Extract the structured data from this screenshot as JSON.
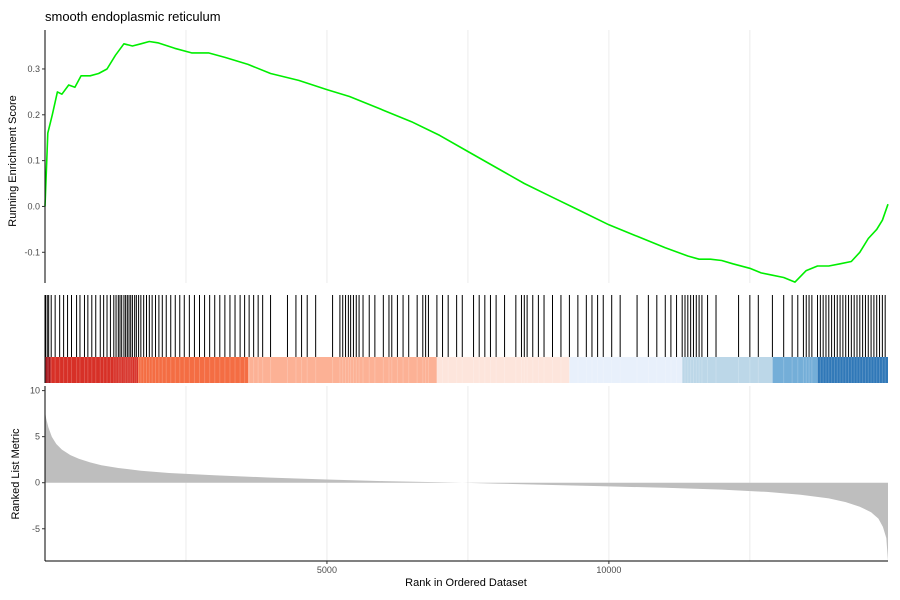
{
  "chart_data": [
    {
      "panel": "running-enrichment",
      "type": "line",
      "title": "smooth endoplasmic reticulum",
      "ylabel": "Running Enrichment Score",
      "xlim": [
        0,
        14950
      ],
      "ylim": [
        -0.167,
        0.385
      ],
      "yticks": [
        -0.1,
        0.0,
        0.1,
        0.2,
        0.3
      ],
      "ytick_labels": [
        "-0.1",
        "0.0",
        "0.1",
        "0.2",
        "0.3"
      ],
      "grid": true,
      "color": "#00ee00",
      "x": [
        0,
        50,
        130,
        220,
        300,
        420,
        530,
        640,
        800,
        950,
        1100,
        1250,
        1400,
        1550,
        1700,
        1850,
        2000,
        2300,
        2600,
        2900,
        3200,
        3600,
        4000,
        4500,
        5000,
        5400,
        6000,
        6500,
        7000,
        7500,
        8000,
        8500,
        9000,
        9500,
        10000,
        10500,
        11000,
        11400,
        11600,
        11800,
        12000,
        12200,
        12500,
        12700,
        12900,
        13100,
        13300,
        13500,
        13700,
        13900,
        14100,
        14300,
        14450,
        14600,
        14750,
        14850,
        14950
      ],
      "y": [
        0.0,
        0.16,
        0.2,
        0.25,
        0.245,
        0.265,
        0.26,
        0.285,
        0.285,
        0.29,
        0.3,
        0.33,
        0.355,
        0.35,
        0.355,
        0.36,
        0.357,
        0.345,
        0.335,
        0.335,
        0.325,
        0.31,
        0.29,
        0.275,
        0.255,
        0.24,
        0.21,
        0.185,
        0.155,
        0.12,
        0.085,
        0.05,
        0.02,
        -0.01,
        -0.04,
        -0.065,
        -0.09,
        -0.108,
        -0.115,
        -0.115,
        -0.118,
        -0.125,
        -0.135,
        -0.145,
        -0.15,
        -0.155,
        -0.165,
        -0.14,
        -0.13,
        -0.13,
        -0.125,
        -0.12,
        -0.1,
        -0.07,
        -0.05,
        -0.03,
        0.005
      ]
    },
    {
      "panel": "gene-hits",
      "type": "rug",
      "xlim": [
        0,
        14950
      ],
      "hits": [
        10,
        40,
        65,
        110,
        180,
        260,
        330,
        400,
        470,
        560,
        620,
        700,
        760,
        830,
        900,
        980,
        1040,
        1100,
        1160,
        1220,
        1260,
        1300,
        1330,
        1360,
        1400,
        1430,
        1460,
        1490,
        1520,
        1550,
        1590,
        1620,
        1660,
        1700,
        1750,
        1800,
        1850,
        1900,
        1960,
        2020,
        2080,
        2150,
        2230,
        2310,
        2390,
        2470,
        2560,
        2650,
        2740,
        2830,
        2920,
        3010,
        3100,
        3190,
        3280,
        3370,
        3460,
        3540,
        3620,
        3700,
        3780,
        3860,
        4000,
        4300,
        4450,
        4550,
        4650,
        4800,
        5100,
        5230,
        5280,
        5330,
        5380,
        5420,
        5470,
        5520,
        5570,
        5640,
        5750,
        5850,
        6000,
        6100,
        6150,
        6250,
        6350,
        6450,
        6600,
        6700,
        6750,
        6800,
        6950,
        7050,
        7150,
        7300,
        7400,
        7600,
        7700,
        7800,
        7900,
        8000,
        8150,
        8350,
        8450,
        8500,
        8550,
        8650,
        8750,
        8850,
        9000,
        9150,
        9300,
        9450,
        9600,
        9700,
        9800,
        9900,
        10050,
        10200,
        10500,
        10700,
        10850,
        11000,
        11100,
        11200,
        11300,
        11350,
        11400,
        11450,
        11500,
        11550,
        11600,
        11650,
        11750,
        11900,
        12300,
        12500,
        12650,
        12900,
        13100,
        13250,
        13350,
        13450,
        13500,
        13550,
        13600,
        13700,
        13750,
        13800,
        13850,
        13900,
        13950,
        14000,
        14050,
        14100,
        14150,
        14200,
        14250,
        14300,
        14350,
        14400,
        14450,
        14500,
        14550,
        14600,
        14650,
        14700,
        14750,
        14800,
        14850,
        14900
      ]
    },
    {
      "panel": "rank-color-bar",
      "type": "heatmap",
      "xlim": [
        0,
        14950
      ],
      "segments": [
        {
          "start": 0,
          "end": 100,
          "color": "#a50f15"
        },
        {
          "start": 100,
          "end": 1650,
          "color": "#d73027"
        },
        {
          "start": 1650,
          "end": 3600,
          "color": "#f46d43"
        },
        {
          "start": 3600,
          "end": 6950,
          "color": "#fcb195"
        },
        {
          "start": 6950,
          "end": 9300,
          "color": "#fde5dc"
        },
        {
          "start": 9300,
          "end": 11300,
          "color": "#e8f0fb"
        },
        {
          "start": 11300,
          "end": 12900,
          "color": "#bcd7e8"
        },
        {
          "start": 12900,
          "end": 13700,
          "color": "#74aed8"
        },
        {
          "start": 13700,
          "end": 14950,
          "color": "#3078b8"
        }
      ]
    },
    {
      "panel": "ranked-list-metric",
      "type": "area",
      "xlabel": "Rank in Ordered Dataset",
      "ylabel": "Ranked List Metric",
      "xlim": [
        0,
        14950
      ],
      "ylim": [
        -8.5,
        10.5
      ],
      "xticks": [
        5000,
        10000
      ],
      "xtick_labels": [
        "5000",
        "10000"
      ],
      "yticks": [
        -5,
        0,
        5,
        10
      ],
      "ytick_labels": [
        "-5",
        "0",
        "5",
        "10"
      ],
      "grid": true,
      "color": "#bebebe",
      "x": [
        0,
        20,
        60,
        120,
        200,
        300,
        450,
        600,
        800,
        1000,
        1300,
        1700,
        2200,
        3000,
        4000,
        5000,
        6000,
        7000,
        7400,
        8000,
        9000,
        10000,
        11000,
        12000,
        12800,
        13400,
        13900,
        14200,
        14450,
        14650,
        14780,
        14860,
        14920,
        14950
      ],
      "y": [
        7.8,
        7.0,
        6.0,
        5.0,
        4.2,
        3.6,
        3.0,
        2.6,
        2.2,
        1.9,
        1.6,
        1.3,
        1.05,
        0.8,
        0.55,
        0.35,
        0.18,
        0.05,
        0.0,
        -0.1,
        -0.25,
        -0.4,
        -0.55,
        -0.75,
        -1.0,
        -1.3,
        -1.7,
        -2.1,
        -2.6,
        -3.2,
        -3.9,
        -4.8,
        -6.0,
        -8.5
      ]
    }
  ]
}
